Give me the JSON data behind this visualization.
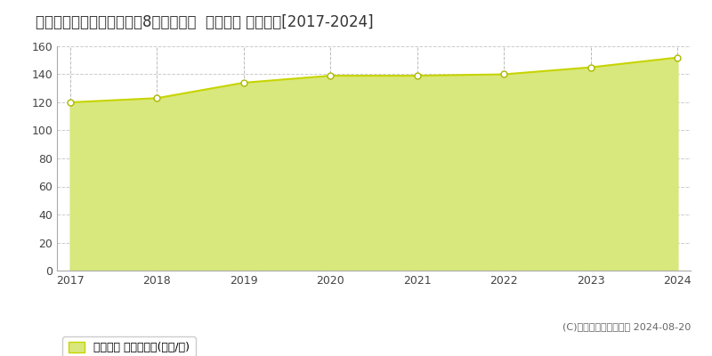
{
  "title": "大阪府吹田市千里山霧が乙8５番２５外  地価公示 地価推移[2017-2024]",
  "years": [
    2017,
    2018,
    2019,
    2020,
    2021,
    2022,
    2023,
    2024
  ],
  "values": [
    120,
    123,
    134,
    139,
    139,
    140,
    145,
    152
  ],
  "ylim": [
    0,
    160
  ],
  "yticks": [
    0,
    20,
    40,
    60,
    80,
    100,
    120,
    140,
    160
  ],
  "line_color": "#c8d400",
  "fill_color": "#d9e87c",
  "marker_color": "#ffffff",
  "marker_edge_color": "#aab800",
  "bg_color": "#ffffff",
  "plot_bg_color": "#ffffff",
  "grid_color": "#cccccc",
  "legend_label": "地価公示 平均坤単価(万円/坤)",
  "copyright_text": "(C)土地価格ドットコム 2024-08-20",
  "title_fontsize": 12,
  "tick_fontsize": 9,
  "legend_fontsize": 9,
  "copyright_fontsize": 8
}
